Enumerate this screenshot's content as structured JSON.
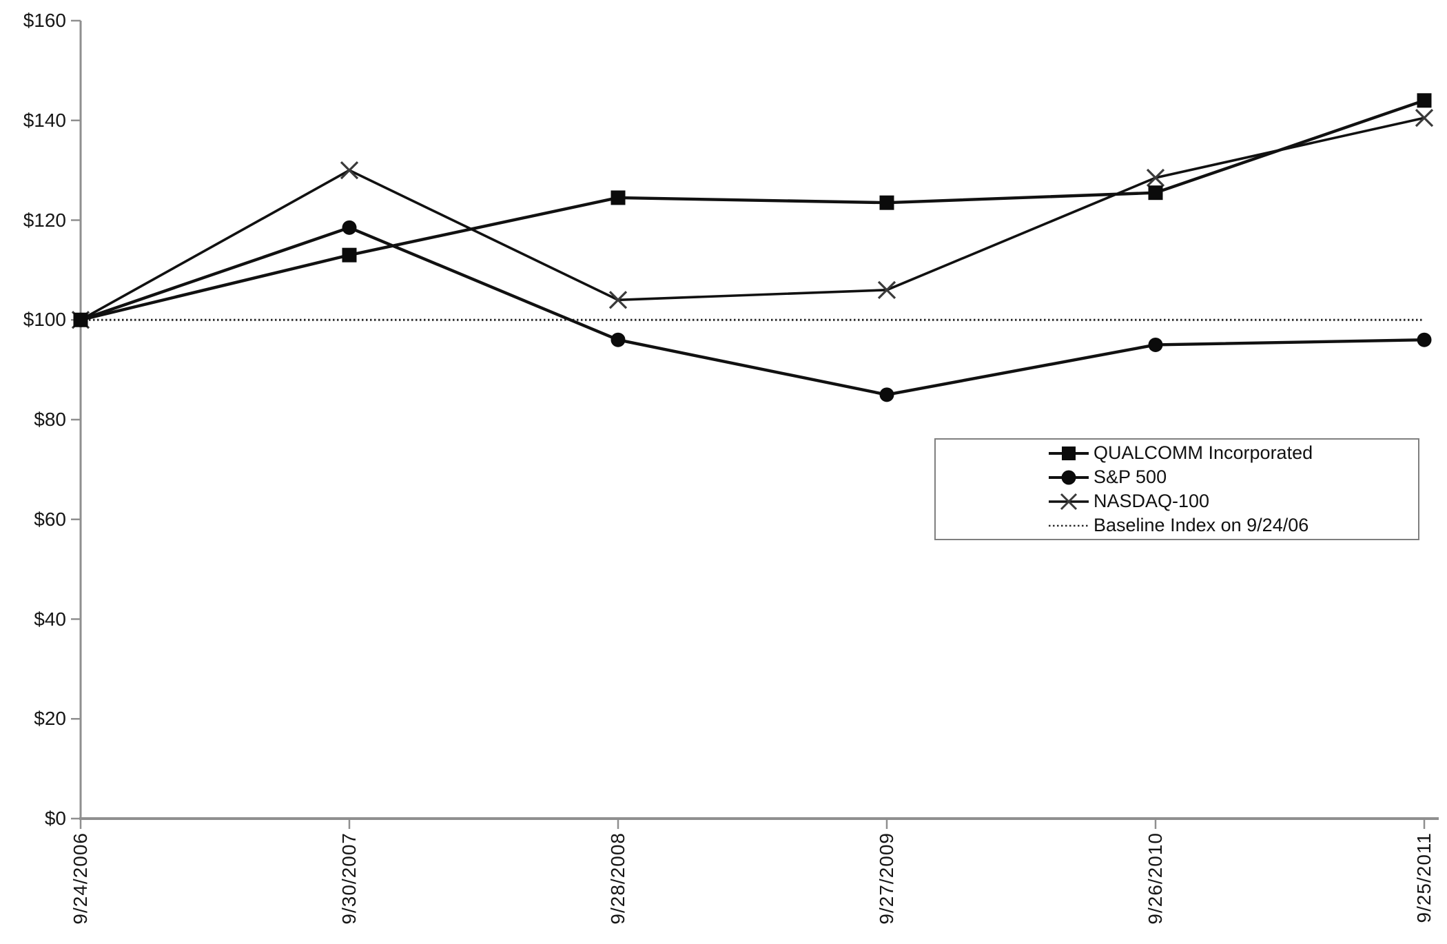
{
  "chart_data": {
    "type": "line",
    "title": "",
    "xlabel": "",
    "ylabel": "",
    "x_labels": [
      "9/24/2006",
      "9/30/2007",
      "9/28/2008",
      "9/27/2009",
      "9/26/2010",
      "9/25/2011"
    ],
    "y_tick_labels": [
      "$0",
      "$20",
      "$40",
      "$60",
      "$80",
      "$100",
      "$120",
      "$140",
      "$160"
    ],
    "y_ticks": [
      0,
      20,
      40,
      60,
      80,
      100,
      120,
      140,
      160
    ],
    "ylim": [
      0,
      160
    ],
    "grid": false,
    "legend_position": "right-middle",
    "series": [
      {
        "name": "QUALCOMM Incorporated",
        "marker": "square",
        "values": [
          100,
          113,
          124.5,
          123.5,
          125.5,
          144
        ]
      },
      {
        "name": "S&P 500",
        "marker": "circle",
        "values": [
          100,
          118.5,
          96,
          85,
          95,
          96
        ]
      },
      {
        "name": "NASDAQ-100",
        "marker": "x",
        "values": [
          100,
          130,
          104,
          106,
          128.5,
          140.5
        ]
      },
      {
        "name": "Baseline Index on 9/24/06",
        "marker": "dotted-line",
        "values": [
          100,
          100,
          100,
          100,
          100,
          100
        ]
      }
    ],
    "colors": {
      "series_line": "#111111",
      "x_marker_stroke": "#3a3a3a",
      "axis": "#8f8f8f",
      "tick": "#8f8f8f",
      "text": "#161616",
      "legend_border": "#7f7f7f",
      "background": "#ffffff"
    }
  }
}
